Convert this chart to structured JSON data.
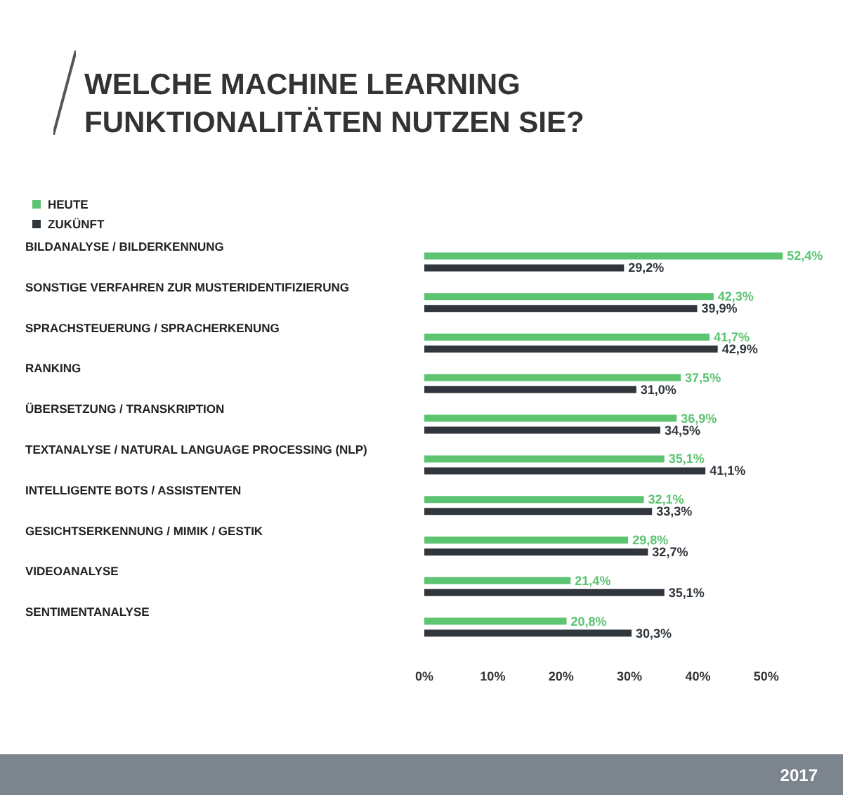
{
  "chart_data": {
    "type": "bar",
    "orientation": "horizontal",
    "title": "WELCHE MACHINE LEARNING\nFUNKTIONALITÄTEN NUTZEN SIE?",
    "categories": [
      "BILDANALYSE / BILDERKENNUNG",
      "SONSTIGE VERFAHREN ZUR MUSTERIDENTIFIZIERUNG",
      "SPRACHSTEUERUNG / SPRACHERKENUNG",
      "RANKING",
      "ÜBERSETZUNG / TRANSKRIPTION",
      "TEXTANALYSE / NATURAL LANGUAGE PROCESSING (NLP)",
      "INTELLIGENTE BOTS / ASSISTENTEN",
      "GESICHTSERKENNUNG / MIMIK / GESTIK",
      "VIDEOANALYSE",
      "SENTIMENTANALYSE"
    ],
    "series": [
      {
        "name": "HEUTE",
        "color": "#5dc472",
        "values": [
          52.4,
          42.3,
          41.7,
          37.5,
          36.9,
          35.1,
          32.1,
          29.8,
          21.4,
          20.8
        ],
        "value_labels": [
          "52,4%",
          "42,3%",
          "41,7%",
          "37,5%",
          "36,9%",
          "35,1%",
          "32,1%",
          "29,8%",
          "21,4%",
          "20,8%"
        ]
      },
      {
        "name": "ZUKÜNFT",
        "color": "#30363c",
        "values": [
          29.2,
          39.9,
          42.9,
          31.0,
          34.5,
          41.1,
          33.3,
          32.7,
          35.1,
          30.3
        ],
        "value_labels": [
          "29,2%",
          "39,9%",
          "42,9%",
          "31,0%",
          "34,5%",
          "41,1%",
          "33,3%",
          "32,7%",
          "35,1%",
          "30,3%"
        ]
      }
    ],
    "xlim": [
      0,
      53
    ],
    "xticks": [
      {
        "value": 0,
        "label": "0%"
      },
      {
        "value": 10,
        "label": "10%"
      },
      {
        "value": 20,
        "label": "20%"
      },
      {
        "value": 30,
        "label": "30%"
      },
      {
        "value": 40,
        "label": "40%"
      },
      {
        "value": 50,
        "label": "50%"
      }
    ],
    "grid": false,
    "legend": "top left",
    "annotations": [
      "2017"
    ]
  }
}
